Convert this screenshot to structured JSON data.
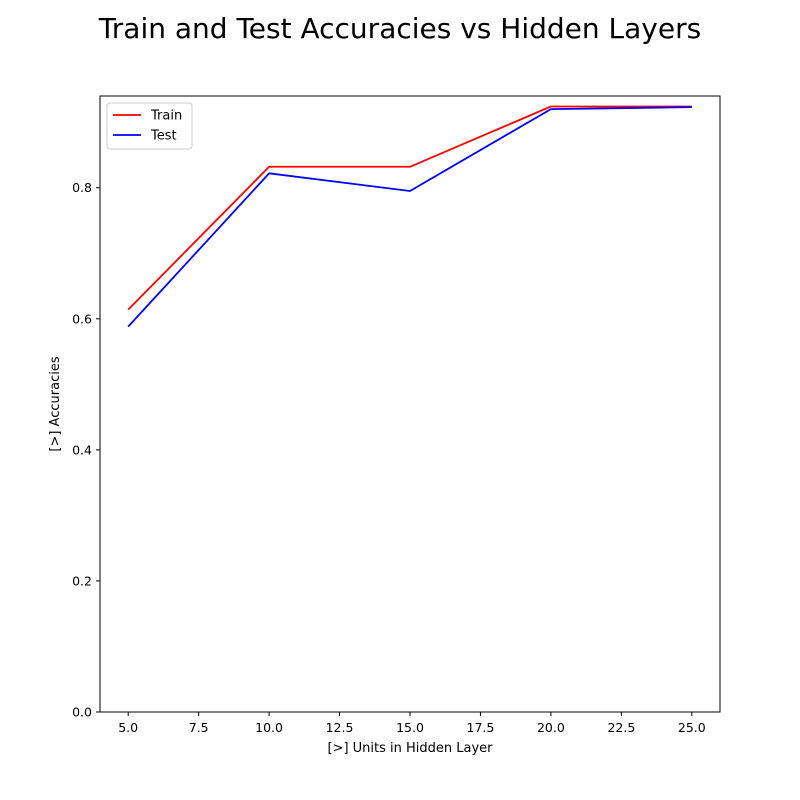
{
  "chart_data": {
    "type": "line",
    "title": "Train and Test Accuracies vs Hidden Layers",
    "xlabel": "[>] Units in Hidden Layer",
    "ylabel": "[>] Accuracies",
    "x": [
      5,
      10,
      15,
      20,
      25
    ],
    "xlim": [
      4,
      26
    ],
    "ylim": [
      0,
      0.94
    ],
    "xticks": [
      5.0,
      7.5,
      10.0,
      12.5,
      15.0,
      17.5,
      20.0,
      22.5,
      25.0
    ],
    "xtick_labels": [
      "5.0",
      "7.5",
      "10.0",
      "12.5",
      "15.0",
      "17.5",
      "20.0",
      "22.5",
      "25.0"
    ],
    "yticks": [
      0.0,
      0.2,
      0.4,
      0.6,
      0.8
    ],
    "ytick_labels": [
      "0.0",
      "0.2",
      "0.4",
      "0.6",
      "0.8"
    ],
    "grid": false,
    "legend_position": "top-left",
    "series": [
      {
        "name": "Train",
        "color": "#ff0000",
        "values": [
          0.614,
          0.832,
          0.832,
          0.924,
          0.924
        ]
      },
      {
        "name": "Test",
        "color": "#0000ff",
        "values": [
          0.588,
          0.822,
          0.795,
          0.92,
          0.923
        ]
      }
    ]
  }
}
